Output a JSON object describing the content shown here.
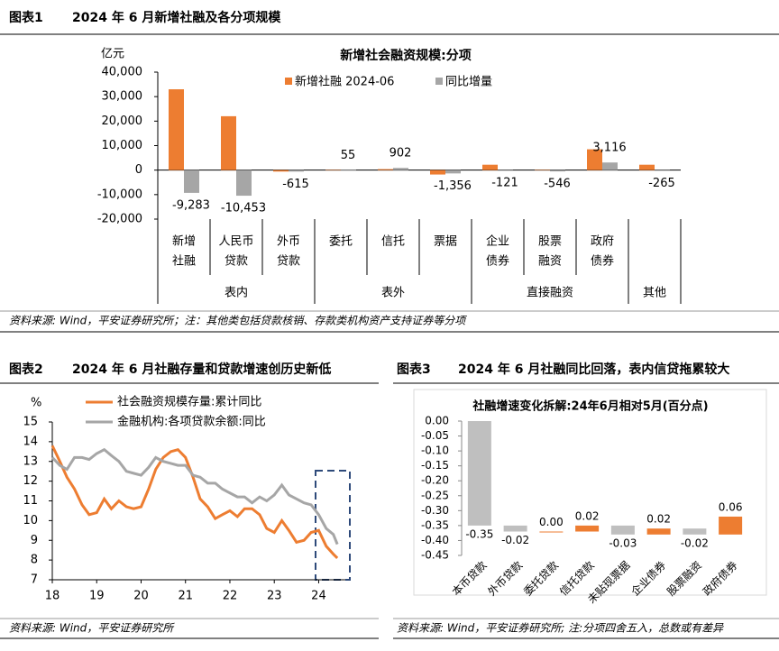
{
  "figures": [
    {
      "label": "图表1",
      "title": "2024 年 6 月新增社融及各分项规模",
      "source": "资料来源: Wind，平安证券研究所；注：其他类包括贷款核销、存款类机构资产支持证券等分项"
    },
    {
      "label": "图表2",
      "title": "2024 年 6 月社融存量和贷款增速创历史新低",
      "source": "资料来源: Wind，平安证券研究所"
    },
    {
      "label": "图表3",
      "title": "2024 年 6 月社融同比回落，表内信贷拖累较大",
      "source": "资料来源: Wind，平安证券研究所; 注:分项四舍五入，总数或有差异"
    }
  ],
  "chart_data": [
    {
      "type": "bar",
      "title": "新增社会融资规模:分项",
      "y_label": "亿元",
      "groups": [
        {
          "label": "表内",
          "categories": [
            [
              "新增",
              "社融"
            ],
            [
              "人民币",
              "贷款"
            ],
            [
              "外币",
              "贷款"
            ]
          ]
        },
        {
          "label": "表外",
          "categories": [
            [
              "委托"
            ],
            [
              "信托"
            ],
            [
              "票据"
            ]
          ]
        },
        {
          "label": "直接融资",
          "categories": [
            [
              "企业",
              "债券"
            ],
            [
              "股票",
              "融资"
            ],
            [
              "政府",
              "债券"
            ]
          ]
        },
        {
          "label": "其他",
          "categories": [
            null
          ]
        }
      ],
      "series": [
        {
          "name": "新增社融 2024-06",
          "color": "#ed7d31",
          "values": [
            33000,
            22000,
            -600,
            50,
            400,
            -1800,
            2200,
            100,
            8500,
            2200
          ]
        },
        {
          "name": "同比增量",
          "color": "#a6a6a6",
          "values": [
            -9283,
            -10453,
            -615,
            55,
            902,
            -1356,
            -121,
            -546,
            3116,
            -265
          ],
          "value_labels": [
            "-9,283",
            "-10,453",
            "-615",
            "55",
            "902",
            "-1,356",
            "-121",
            "-546",
            "3,116",
            "-265"
          ]
        }
      ],
      "ylim": [
        -20000,
        40000
      ],
      "yticks": [
        {
          "value": -20000,
          "label": "-20,000"
        },
        {
          "value": -10000,
          "label": "-10,000"
        },
        0,
        {
          "value": 10000,
          "label": "10,000"
        },
        {
          "value": 20000,
          "label": "20,000"
        },
        {
          "value": 30000,
          "label": "30,000"
        },
        {
          "value": 40000,
          "label": "40,000"
        }
      ]
    },
    {
      "type": "line",
      "y_label": "%",
      "x": [
        18.0,
        18.17,
        18.33,
        18.5,
        18.67,
        18.83,
        19.0,
        19.17,
        19.33,
        19.5,
        19.67,
        19.83,
        20.0,
        20.17,
        20.33,
        20.5,
        20.67,
        20.83,
        21.0,
        21.17,
        21.33,
        21.5,
        21.67,
        21.83,
        22.0,
        22.17,
        22.33,
        22.5,
        22.67,
        22.83,
        23.0,
        23.17,
        23.33,
        23.5,
        23.67,
        23.83,
        24.0,
        24.17,
        24.33,
        24.42
      ],
      "series": [
        {
          "name": "社会融资规模存量:累计同比",
          "color": "#ed7d31",
          "values": [
            13.8,
            13.0,
            12.2,
            11.6,
            10.8,
            10.3,
            10.4,
            11.1,
            10.6,
            11.0,
            10.7,
            10.6,
            10.7,
            11.6,
            12.6,
            13.2,
            13.5,
            13.6,
            13.2,
            12.2,
            11.1,
            10.7,
            10.1,
            10.3,
            10.5,
            10.2,
            10.6,
            10.6,
            10.3,
            9.6,
            9.4,
            10.0,
            9.5,
            8.9,
            9.0,
            9.4,
            9.5,
            8.7,
            8.3,
            8.1
          ]
        },
        {
          "name": "金融机构:各项贷款余额:同比",
          "color": "#a6a6a6",
          "values": [
            13.2,
            12.8,
            12.6,
            13.2,
            13.2,
            13.1,
            13.4,
            13.6,
            13.3,
            13.0,
            12.5,
            12.4,
            12.3,
            12.7,
            13.2,
            13.0,
            12.9,
            12.8,
            12.8,
            12.3,
            12.2,
            11.9,
            11.9,
            11.6,
            11.4,
            11.2,
            11.2,
            10.9,
            11.2,
            11.0,
            11.3,
            11.8,
            11.3,
            11.1,
            10.9,
            10.8,
            10.3,
            9.6,
            9.3,
            8.8
          ]
        }
      ],
      "xlim": [
        18,
        24.6
      ],
      "xticks": [
        18,
        19,
        20,
        21,
        22,
        23,
        24
      ],
      "ylim": [
        7,
        15
      ],
      "yticks": [
        7,
        8,
        9,
        10,
        11,
        12,
        13,
        14,
        15
      ]
    },
    {
      "type": "waterfall",
      "title": "社融增速变化拆解:24年6月相对5月(百分点)",
      "categories": [
        "本币贷款",
        "外币贷款",
        "委托贷款",
        "信托贷款",
        "未贴现票据",
        "企业债券",
        "股票融资",
        "政府债券"
      ],
      "values": [
        -0.35,
        -0.02,
        0.0,
        0.02,
        -0.03,
        0.02,
        -0.02,
        0.06
      ],
      "value_labels": [
        "-0.35",
        "-0.02",
        "0.00",
        "0.02",
        "-0.03",
        "0.02",
        "-0.02",
        "0.06"
      ],
      "colors": {
        "increase": "#ed7d31",
        "decrease": "#bfbfbf"
      },
      "ylim": [
        -0.45,
        0
      ],
      "yticks": [
        {
          "value": 0,
          "label": "0.00"
        },
        {
          "value": -0.05,
          "label": "-0.05"
        },
        {
          "value": -0.1,
          "label": "-0.10"
        },
        {
          "value": -0.15,
          "label": "-0.15"
        },
        {
          "value": -0.2,
          "label": "-0.20"
        },
        {
          "value": -0.25,
          "label": "-0.25"
        },
        {
          "value": -0.3,
          "label": "-0.30"
        },
        {
          "value": -0.35,
          "label": "-0.35"
        },
        {
          "value": -0.4,
          "label": "-0.40"
        },
        {
          "value": -0.45,
          "label": "-0.45"
        }
      ]
    }
  ]
}
